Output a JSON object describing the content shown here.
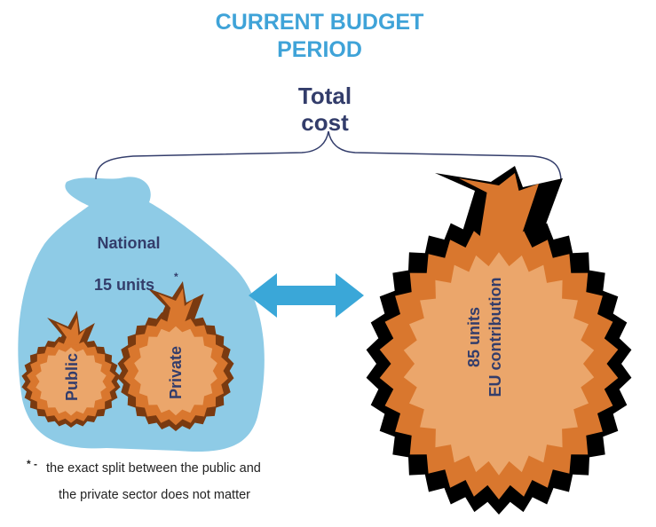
{
  "title": [
    "CURRENT BUDGET",
    "PERIOD"
  ],
  "total": [
    "Total",
    "cost"
  ],
  "national": {
    "label": "National",
    "amount": "15 units",
    "marker": "*"
  },
  "bags": {
    "public": "Public",
    "private": "Private"
  },
  "eu": {
    "amount": "85 units",
    "label": "EU contribution"
  },
  "footnote": {
    "marker": "* -",
    "lines": [
      "the exact split between the public and",
      "the private sector does not matter"
    ]
  }
}
